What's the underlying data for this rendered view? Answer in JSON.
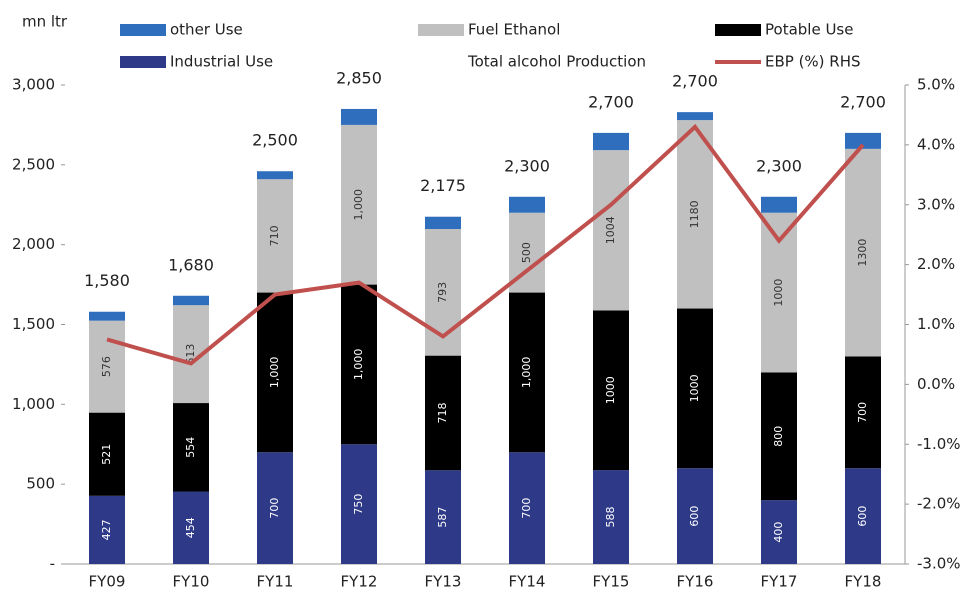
{
  "chart_data": {
    "type": "bar",
    "stacked": true,
    "y_label": "mn ltr",
    "categories": [
      "FY09",
      "FY10",
      "FY11",
      "FY12",
      "FY13",
      "FY14",
      "FY15",
      "FY16",
      "FY17",
      "FY18"
    ],
    "series": [
      {
        "name": "Industrial Use",
        "type": "bar",
        "color": "#2e3a87",
        "label_color": "#ffffff",
        "values": [
          427,
          454,
          700,
          750,
          587,
          700,
          588,
          600,
          400,
          600
        ]
      },
      {
        "name": "Potable Use",
        "type": "bar",
        "color": "#000000",
        "label_color": "#ffffff",
        "values": [
          521,
          554,
          1000,
          1000,
          718,
          1000,
          1000,
          1000,
          800,
          700
        ],
        "value_labels": [
          "521",
          "554",
          "1,000",
          "1,000",
          "718",
          "1,000",
          "1000",
          "1000",
          "800",
          "700"
        ]
      },
      {
        "name": "Fuel Ethanol",
        "type": "bar",
        "color": "#c0c0c0",
        "label_color": "#333333",
        "values": [
          576,
          613,
          710,
          1000,
          793,
          500,
          1004,
          1180,
          1000,
          1300
        ],
        "value_labels": [
          "576",
          "613",
          "710",
          "1,000",
          "793",
          "500",
          "1004",
          "1180",
          "1000",
          "1300"
        ]
      },
      {
        "name": "other Use",
        "type": "bar",
        "color": "#2f6ebd",
        "values": [
          56,
          59,
          50,
          100,
          77,
          100,
          108,
          50,
          100,
          100
        ]
      },
      {
        "name": "Total alcohol Production",
        "type": "total",
        "values": [
          1580,
          1680,
          2500,
          2850,
          2175,
          2300,
          2700,
          2700,
          2300,
          2700
        ],
        "value_labels": [
          "1,580",
          "1,680",
          "2,500",
          "2,850",
          "2,175",
          "2,300",
          "2,700",
          "2,700",
          "2,300",
          "2,700"
        ]
      },
      {
        "name": "EBP (%) RHS",
        "type": "line",
        "axis": "y2",
        "color": "#c0504d",
        "values": [
          0.75,
          0.35,
          1.5,
          1.7,
          0.8,
          1.9,
          3.0,
          4.3,
          2.4,
          4.0
        ]
      }
    ],
    "legend_order": [
      3,
      2,
      1,
      0,
      4,
      5
    ],
    "ylim": [
      0,
      3000
    ],
    "yticks": [
      {
        "value": 0,
        "label": "-"
      },
      500,
      {
        "value": 1000,
        "label": "1,000"
      },
      {
        "value": 1500,
        "label": "1,500"
      },
      {
        "value": 2000,
        "label": "2,000"
      },
      {
        "value": 2500,
        "label": "2,500"
      },
      {
        "value": 3000,
        "label": "3,000"
      }
    ],
    "y2lim": [
      -3,
      5
    ],
    "y2ticks": [
      {
        "value": -3,
        "label": "-3.0%"
      },
      {
        "value": -2,
        "label": "-2.0%"
      },
      {
        "value": -1,
        "label": "-1.0%"
      },
      {
        "value": 0,
        "label": "0.0%"
      },
      {
        "value": 1,
        "label": "1.0%"
      },
      {
        "value": 2,
        "label": "2.0%"
      },
      {
        "value": 3,
        "label": "3.0%"
      },
      {
        "value": 4,
        "label": "4.0%"
      },
      {
        "value": 5,
        "label": "5.0%"
      }
    ],
    "grid": false
  }
}
